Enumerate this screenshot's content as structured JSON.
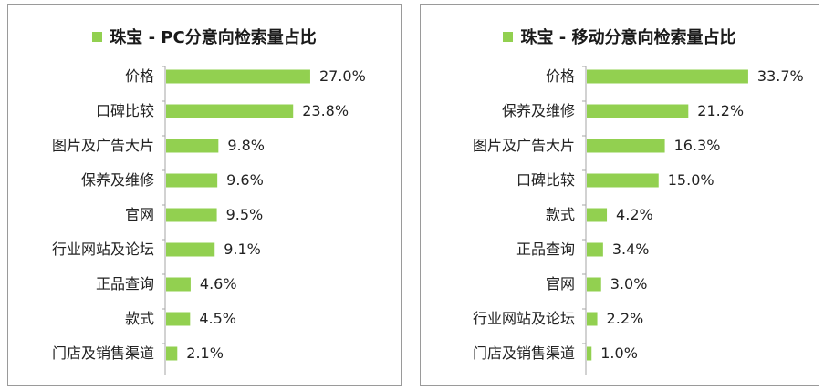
{
  "chart_data": [
    {
      "type": "bar",
      "orientation": "horizontal",
      "title": "珠宝 - PC分意向检索量占比",
      "categories": [
        "价格",
        "口碑比较",
        "图片及广告大片",
        "保养及维修",
        "官网",
        "行业网站及论坛",
        "正品查询",
        "款式",
        "门店及销售渠道"
      ],
      "values": [
        27.0,
        23.8,
        9.8,
        9.6,
        9.5,
        9.1,
        4.6,
        4.5,
        2.1
      ],
      "labels": [
        "27.0%",
        "23.8%",
        "9.8%",
        "9.6%",
        "9.5%",
        "9.1%",
        "4.6%",
        "4.5%",
        "2.1%"
      ],
      "color": "#92d050",
      "legend": "top",
      "grid": false
    },
    {
      "type": "bar",
      "orientation": "horizontal",
      "title": "珠宝 - 移动分意向检索量占比",
      "categories": [
        "价格",
        "保养及维修",
        "图片及广告大片",
        "口碑比较",
        "款式",
        "正品查询",
        "官网",
        "行业网站及论坛",
        "门店及销售渠道"
      ],
      "values": [
        33.7,
        21.2,
        16.3,
        15.0,
        4.2,
        3.4,
        3.0,
        2.2,
        1.0
      ],
      "labels": [
        "33.7%",
        "21.2%",
        "16.3%",
        "15.0%",
        "4.2%",
        "3.4%",
        "3.0%",
        "2.2%",
        "1.0%"
      ],
      "color": "#92d050",
      "legend": "top",
      "grid": false
    }
  ]
}
